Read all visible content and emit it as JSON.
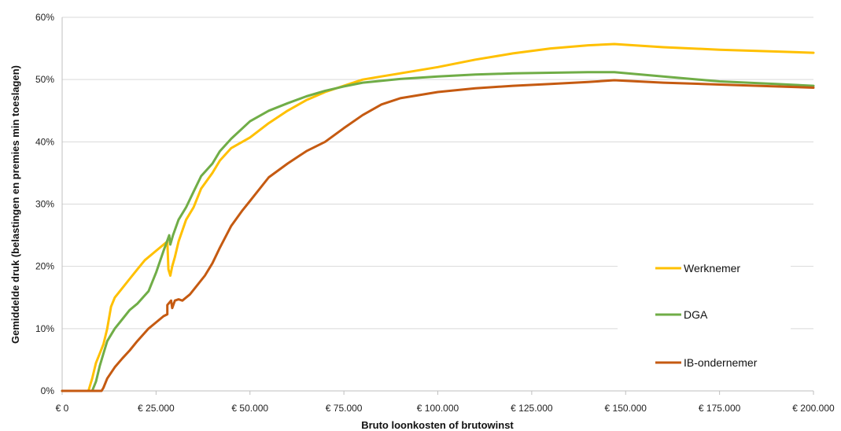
{
  "chart_data": {
    "type": "line",
    "xlabel": "Bruto loonkosten of brutowinst",
    "ylabel": "Gemiddelde druk (belastingen en premies min toeslagen)",
    "xlim": [
      0,
      200000
    ],
    "ylim": [
      0,
      60
    ],
    "x_tick_values": [
      0,
      25000,
      50000,
      75000,
      100000,
      125000,
      150000,
      175000,
      200000
    ],
    "x_tick_labels": [
      "€ 0",
      "€ 25.000",
      "€ 50.000",
      "€ 75.000",
      "€ 100.000",
      "€ 125.000",
      "€ 150.000",
      "€ 175.000",
      "€ 200.000"
    ],
    "y_tick_values": [
      0,
      10,
      20,
      30,
      40,
      50,
      60
    ],
    "y_tick_labels": [
      "0%",
      "10%",
      "20%",
      "30%",
      "40%",
      "50%",
      "60%"
    ],
    "grid": "horizontal",
    "legend_position": "right",
    "series": [
      {
        "name": "Werknemer",
        "color": "#FFC000",
        "points": [
          [
            0,
            0
          ],
          [
            7000,
            0
          ],
          [
            8000,
            2
          ],
          [
            9000,
            4.5
          ],
          [
            10000,
            6
          ],
          [
            11000,
            7.5
          ],
          [
            12000,
            10
          ],
          [
            13000,
            13.5
          ],
          [
            14000,
            15
          ],
          [
            16000,
            16.5
          ],
          [
            18000,
            18
          ],
          [
            20000,
            19.5
          ],
          [
            22000,
            21
          ],
          [
            25000,
            22.5
          ],
          [
            27000,
            23.5
          ],
          [
            28000,
            24
          ],
          [
            28300,
            19.5
          ],
          [
            28800,
            18.5
          ],
          [
            29300,
            20
          ],
          [
            30000,
            21.5
          ],
          [
            31000,
            24
          ],
          [
            33000,
            27.5
          ],
          [
            35000,
            29.5
          ],
          [
            37000,
            32.5
          ],
          [
            40000,
            35
          ],
          [
            42000,
            37
          ],
          [
            45000,
            39
          ],
          [
            50000,
            40.7
          ],
          [
            55000,
            43
          ],
          [
            60000,
            45
          ],
          [
            65000,
            46.7
          ],
          [
            70000,
            48
          ],
          [
            75000,
            49
          ],
          [
            80000,
            50
          ],
          [
            85000,
            50.5
          ],
          [
            95000,
            51.5
          ],
          [
            100000,
            52
          ],
          [
            110000,
            53.2
          ],
          [
            120000,
            54.2
          ],
          [
            130000,
            55
          ],
          [
            140000,
            55.5
          ],
          [
            147000,
            55.7
          ],
          [
            160000,
            55.2
          ],
          [
            175000,
            54.8
          ],
          [
            190000,
            54.5
          ],
          [
            200000,
            54.3
          ]
        ]
      },
      {
        "name": "DGA",
        "color": "#70AD47",
        "points": [
          [
            0,
            0
          ],
          [
            8000,
            0
          ],
          [
            9000,
            1.5
          ],
          [
            10000,
            4
          ],
          [
            11000,
            6
          ],
          [
            12000,
            8
          ],
          [
            14000,
            10
          ],
          [
            16000,
            11.5
          ],
          [
            18000,
            13
          ],
          [
            20000,
            14
          ],
          [
            23000,
            16
          ],
          [
            25000,
            19
          ],
          [
            27000,
            22.5
          ],
          [
            28500,
            25
          ],
          [
            28800,
            23.5
          ],
          [
            29500,
            25
          ],
          [
            31000,
            27.5
          ],
          [
            33000,
            29.5
          ],
          [
            35000,
            32
          ],
          [
            37000,
            34.5
          ],
          [
            40000,
            36.5
          ],
          [
            42000,
            38.5
          ],
          [
            45000,
            40.5
          ],
          [
            50000,
            43.3
          ],
          [
            55000,
            45
          ],
          [
            60000,
            46.2
          ],
          [
            65000,
            47.3
          ],
          [
            70000,
            48.2
          ],
          [
            75000,
            48.9
          ],
          [
            80000,
            49.5
          ],
          [
            90000,
            50.1
          ],
          [
            100000,
            50.5
          ],
          [
            110000,
            50.8
          ],
          [
            120000,
            51
          ],
          [
            130000,
            51.1
          ],
          [
            140000,
            51.2
          ],
          [
            147000,
            51.2
          ],
          [
            160000,
            50.5
          ],
          [
            175000,
            49.7
          ],
          [
            190000,
            49.3
          ],
          [
            200000,
            49
          ]
        ]
      },
      {
        "name": "IB-ondernemer",
        "color": "#C55A11",
        "points": [
          [
            0,
            0
          ],
          [
            10500,
            0
          ],
          [
            11000,
            0.5
          ],
          [
            12000,
            2
          ],
          [
            14000,
            3.8
          ],
          [
            16000,
            5.2
          ],
          [
            18000,
            6.5
          ],
          [
            20000,
            8
          ],
          [
            23000,
            10
          ],
          [
            25000,
            11
          ],
          [
            27000,
            12
          ],
          [
            28000,
            12.3
          ],
          [
            28000,
            13.8
          ],
          [
            29000,
            14.5
          ],
          [
            29300,
            13.3
          ],
          [
            30000,
            14.5
          ],
          [
            31000,
            14.7
          ],
          [
            32000,
            14.5
          ],
          [
            34000,
            15.5
          ],
          [
            36000,
            17
          ],
          [
            38000,
            18.5
          ],
          [
            40000,
            20.5
          ],
          [
            42000,
            23
          ],
          [
            45000,
            26.5
          ],
          [
            48000,
            29
          ],
          [
            50000,
            30.5
          ],
          [
            55000,
            34.3
          ],
          [
            60000,
            36.5
          ],
          [
            65000,
            38.5
          ],
          [
            70000,
            40
          ],
          [
            75000,
            42.2
          ],
          [
            80000,
            44.3
          ],
          [
            85000,
            46
          ],
          [
            90000,
            47
          ],
          [
            100000,
            48
          ],
          [
            110000,
            48.6
          ],
          [
            120000,
            49
          ],
          [
            130000,
            49.3
          ],
          [
            140000,
            49.6
          ],
          [
            147000,
            49.9
          ],
          [
            160000,
            49.5
          ],
          [
            175000,
            49.2
          ],
          [
            190000,
            48.9
          ],
          [
            200000,
            48.7
          ]
        ]
      }
    ]
  }
}
